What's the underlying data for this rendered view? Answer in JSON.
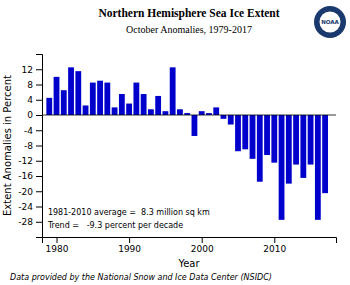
{
  "chart_data": {
    "type": "bar",
    "title": "Northern Hemisphere Sea Ice Extent",
    "subtitle": "October Anomalies, 1979-2017",
    "x_label": "Year",
    "y_label": "Extent Anomalies in Percent",
    "annotations": [
      "1981-2010 average =  8.3 million sq km",
      "Trend =   -9.3 percent per decade"
    ],
    "footer": "Data provided by the National Snow and Ice Data Center (NSIDC)",
    "logo": "NOAA",
    "x": [
      1979,
      1980,
      1981,
      1982,
      1983,
      1984,
      1985,
      1986,
      1987,
      1988,
      1989,
      1990,
      1991,
      1992,
      1993,
      1994,
      1995,
      1996,
      1997,
      1998,
      1999,
      2000,
      2001,
      2002,
      2003,
      2004,
      2005,
      2006,
      2007,
      2008,
      2009,
      2010,
      2011,
      2012,
      2013,
      2014,
      2015,
      2016,
      2017
    ],
    "values": [
      4.5,
      10.0,
      6.5,
      12.5,
      11.5,
      2.5,
      8.5,
      9.0,
      8.5,
      2.0,
      5.5,
      3.0,
      8.5,
      5.5,
      1.5,
      5.0,
      1.0,
      12.5,
      1.5,
      0.5,
      -5.5,
      1.0,
      0.5,
      2.0,
      -1.0,
      -2.5,
      -9.5,
      -9.0,
      -11.5,
      -17.5,
      -10.5,
      -12.5,
      -27.5,
      -18.0,
      -13.0,
      -16.5,
      -13.0,
      -27.5,
      -20.5
    ],
    "color": "#0000CC",
    "ylim": [
      -32,
      16
    ],
    "yticks": [
      12,
      8,
      4,
      0,
      -4,
      -8,
      -12,
      -16,
      -20,
      -24,
      -28
    ],
    "xlim": [
      1978.0,
      2018.5
    ],
    "xticks": [
      1980,
      1990,
      2000,
      2010
    ],
    "grid": false
  }
}
